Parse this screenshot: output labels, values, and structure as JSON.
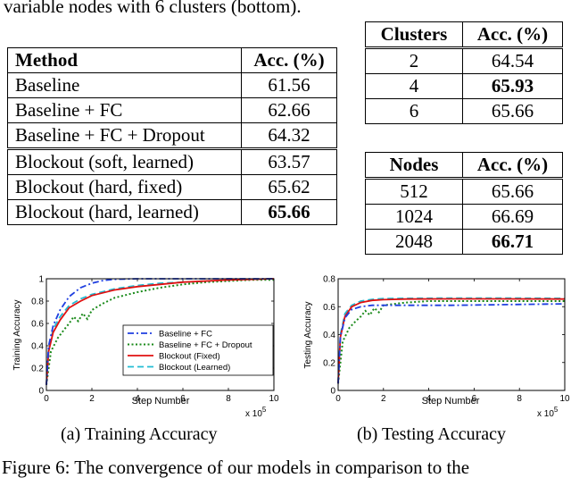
{
  "text": {
    "top_fragment": "variable nodes with 6 clusters (bottom).",
    "bottom_fragment": "Figure 6: The convergence of our models in comparison to the"
  },
  "method_table": {
    "headers": [
      "Method",
      "Acc. (%)"
    ],
    "rows": [
      {
        "method": "Baseline",
        "acc": "61.56",
        "bold": false
      },
      {
        "method": "Baseline + FC",
        "acc": "62.66",
        "bold": false
      },
      {
        "method": "Baseline + FC + Dropout",
        "acc": "64.32",
        "bold": false
      },
      {
        "method": "Blockout (soft, learned)",
        "acc": "63.57",
        "bold": false
      },
      {
        "method": "Blockout (hard, fixed)",
        "acc": "65.62",
        "bold": false
      },
      {
        "method": "Blockout (hard, learned)",
        "acc": "65.66",
        "bold": true
      }
    ]
  },
  "clusters_table": {
    "headers": [
      "Clusters",
      "Acc. (%)"
    ],
    "rows": [
      {
        "key": "2",
        "acc": "64.54",
        "bold": false
      },
      {
        "key": "4",
        "acc": "65.93",
        "bold": true
      },
      {
        "key": "6",
        "acc": "65.66",
        "bold": false
      }
    ]
  },
  "nodes_table": {
    "headers": [
      "Nodes",
      "Acc. (%)"
    ],
    "rows": [
      {
        "key": "512",
        "acc": "65.66",
        "bold": false
      },
      {
        "key": "1024",
        "acc": "66.69",
        "bold": false
      },
      {
        "key": "2048",
        "acc": "66.71",
        "bold": true
      }
    ]
  },
  "charts": {
    "training": {
      "caption": "(a) Training Accuracy",
      "xlabel": "Step Number",
      "ylabel": "Training Accuracy",
      "xmultiplier": "x 10",
      "xexp": "5",
      "xlim": [
        0,
        10
      ],
      "ylim": [
        0,
        1
      ],
      "xticks": [
        "0",
        "2",
        "4",
        "6",
        "8",
        "10"
      ],
      "yticks": [
        "0",
        "0.2",
        "0.4",
        "0.6",
        "0.8",
        "1"
      ],
      "legend": [
        {
          "label": "Baseline + FC",
          "color": "#1f3fe0",
          "dash": "dashdot"
        },
        {
          "label": "Baseline + FC + Dropout",
          "color": "#1a8a1a",
          "dash": "dotted"
        },
        {
          "label": "Blockout (Fixed)",
          "color": "#e01010",
          "dash": "solid"
        },
        {
          "label": "Blockout (Learned)",
          "color": "#22bcd4",
          "dash": "dashed"
        }
      ]
    },
    "testing": {
      "caption": "(b) Testing Accuracy",
      "xlabel": "Step Number",
      "ylabel": "Testing Accuracy",
      "xmultiplier": "x 10",
      "xexp": "5",
      "xlim": [
        0,
        10
      ],
      "ylim": [
        0,
        0.8
      ],
      "xticks": [
        "0",
        "2",
        "4",
        "6",
        "8",
        "10"
      ],
      "yticks": [
        "0",
        "0.2",
        "0.4",
        "0.6",
        "0.8"
      ]
    }
  },
  "chart_data": [
    {
      "type": "line",
      "title": "",
      "xlabel": "Step Number",
      "ylabel": "Training Accuracy",
      "xlim": [
        0,
        10
      ],
      "ylim": [
        0,
        1
      ],
      "grid": false,
      "legend_position": "bottom-right",
      "series": [
        {
          "name": "Baseline + FC",
          "color": "#1f3fe0",
          "dash": "dashdot",
          "x": [
            0,
            0.1,
            0.3,
            0.6,
            1.0,
            1.5,
            2.0,
            2.5,
            3.0,
            4.0,
            6.0,
            10.0
          ],
          "y": [
            0.05,
            0.4,
            0.58,
            0.72,
            0.84,
            0.92,
            0.96,
            0.985,
            0.995,
            1.0,
            1.0,
            1.0
          ]
        },
        {
          "name": "Baseline + FC + Dropout",
          "color": "#1a8a1a",
          "dash": "dotted",
          "x": [
            0,
            0.2,
            0.5,
            0.8,
            1.0,
            1.2,
            1.4,
            1.6,
            1.8,
            2.0,
            2.5,
            3.0,
            4.0,
            5.0,
            6.0,
            7.0,
            8.0,
            9.0,
            10.0
          ],
          "y": [
            0.05,
            0.35,
            0.47,
            0.55,
            0.6,
            0.66,
            0.62,
            0.69,
            0.64,
            0.72,
            0.78,
            0.83,
            0.88,
            0.92,
            0.95,
            0.97,
            0.98,
            0.99,
            0.99
          ]
        },
        {
          "name": "Blockout (Fixed)",
          "color": "#e01010",
          "dash": "solid",
          "x": [
            0,
            0.1,
            0.3,
            0.6,
            1.0,
            1.5,
            2.0,
            3.0,
            4.0,
            5.0,
            6.0,
            8.0,
            10.0
          ],
          "y": [
            0.05,
            0.35,
            0.52,
            0.63,
            0.74,
            0.8,
            0.85,
            0.9,
            0.93,
            0.95,
            0.97,
            0.99,
            1.0
          ]
        },
        {
          "name": "Blockout (Learned)",
          "color": "#22bcd4",
          "dash": "dashed",
          "x": [
            0,
            0.1,
            0.3,
            0.6,
            1.0,
            1.5,
            2.0,
            3.0,
            4.0,
            5.0,
            6.0,
            8.0,
            10.0
          ],
          "y": [
            0.05,
            0.37,
            0.55,
            0.66,
            0.76,
            0.82,
            0.86,
            0.91,
            0.94,
            0.96,
            0.97,
            0.99,
            1.0
          ]
        }
      ]
    },
    {
      "type": "line",
      "title": "",
      "xlabel": "Step Number",
      "ylabel": "Testing Accuracy",
      "xlim": [
        0,
        10
      ],
      "ylim": [
        0,
        0.8
      ],
      "grid": false,
      "series": [
        {
          "name": "Baseline + FC",
          "color": "#1f3fe0",
          "dash": "dashdot",
          "x": [
            0,
            0.1,
            0.3,
            0.6,
            1.0,
            1.5,
            2.0,
            3.0,
            5.0,
            10.0
          ],
          "y": [
            0.05,
            0.38,
            0.52,
            0.58,
            0.6,
            0.61,
            0.61,
            0.61,
            0.61,
            0.62
          ]
        },
        {
          "name": "Baseline + FC + Dropout",
          "color": "#1a8a1a",
          "dash": "dotted",
          "x": [
            0,
            0.2,
            0.5,
            0.8,
            1.0,
            1.2,
            1.4,
            1.6,
            1.8,
            2.0,
            2.5,
            3.0,
            4.0,
            6.0,
            8.0,
            10.0
          ],
          "y": [
            0.05,
            0.35,
            0.45,
            0.5,
            0.53,
            0.57,
            0.54,
            0.59,
            0.56,
            0.61,
            0.62,
            0.63,
            0.64,
            0.64,
            0.64,
            0.64
          ]
        },
        {
          "name": "Blockout (Fixed)",
          "color": "#e01010",
          "dash": "solid",
          "x": [
            0,
            0.1,
            0.3,
            0.6,
            1.0,
            1.5,
            2.0,
            3.0,
            5.0,
            7.0,
            10.0
          ],
          "y": [
            0.05,
            0.38,
            0.53,
            0.6,
            0.63,
            0.645,
            0.65,
            0.655,
            0.656,
            0.656,
            0.655
          ]
        },
        {
          "name": "Blockout (Learned)",
          "color": "#22bcd4",
          "dash": "dashed",
          "x": [
            0,
            0.1,
            0.3,
            0.6,
            1.0,
            1.5,
            2.0,
            3.0,
            5.0,
            7.0,
            10.0
          ],
          "y": [
            0.05,
            0.4,
            0.55,
            0.61,
            0.64,
            0.652,
            0.658,
            0.66,
            0.662,
            0.662,
            0.66
          ]
        }
      ]
    }
  ]
}
